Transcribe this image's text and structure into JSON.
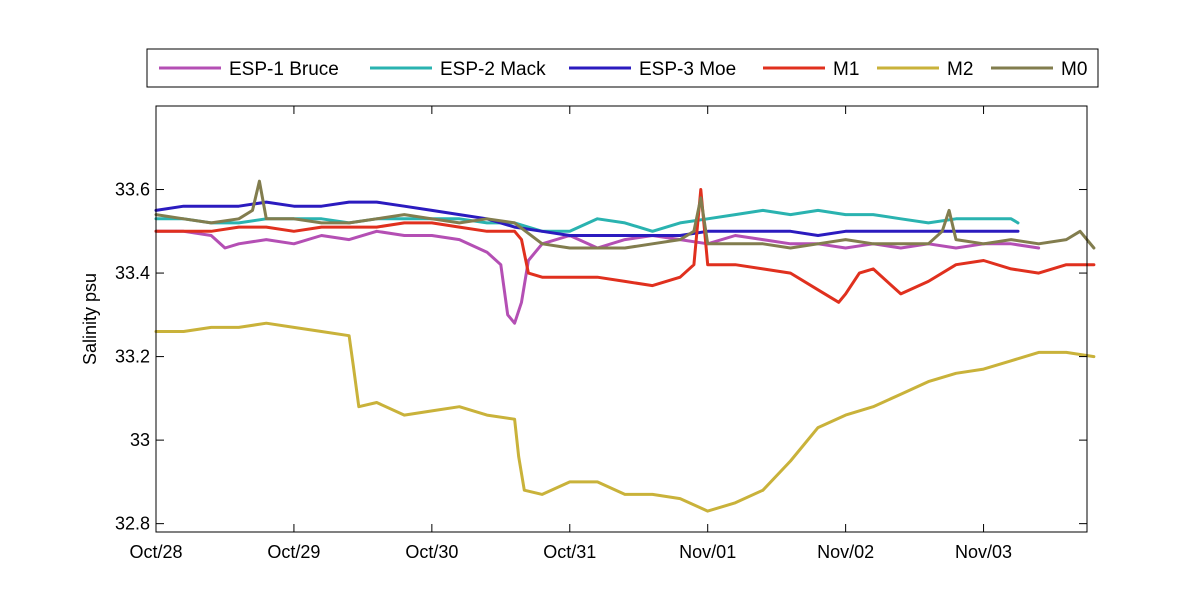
{
  "chart_data": {
    "type": "line",
    "title": "",
    "xlabel": "",
    "ylabel": "Salinity psu",
    "x_ticks": [
      "Oct/28",
      "Oct/29",
      "Oct/30",
      "Oct/31",
      "Nov/01",
      "Nov/02",
      "Nov/03"
    ],
    "y_ticks": [
      "32.8",
      "33",
      "33.2",
      "33.4",
      "33.6"
    ],
    "xlim": [
      "Oct/28",
      "Nov/03 18:00"
    ],
    "ylim": [
      32.78,
      33.8
    ],
    "grid": false,
    "legend_position": "top",
    "x_units": "days since Oct/28 00:00",
    "series": [
      {
        "name": "ESP-1 Bruce",
        "color": "#b44fb4",
        "x": [
          0.0,
          0.2,
          0.4,
          0.5,
          0.6,
          0.8,
          1.0,
          1.2,
          1.4,
          1.6,
          1.8,
          2.0,
          2.2,
          2.4,
          2.5,
          2.55,
          2.6,
          2.65,
          2.7,
          2.8,
          3.0,
          3.2,
          3.4,
          3.6,
          3.8,
          4.0,
          4.2,
          4.4,
          4.6,
          4.8,
          5.0,
          5.2,
          5.4,
          5.6,
          5.8,
          6.0,
          6.2,
          6.4
        ],
        "y": [
          33.5,
          33.5,
          33.49,
          33.46,
          33.47,
          33.48,
          33.47,
          33.49,
          33.48,
          33.5,
          33.49,
          33.49,
          33.48,
          33.45,
          33.42,
          33.3,
          33.28,
          33.33,
          33.43,
          33.47,
          33.49,
          33.46,
          33.48,
          33.49,
          33.48,
          33.47,
          33.49,
          33.48,
          33.47,
          33.47,
          33.46,
          33.47,
          33.46,
          33.47,
          33.46,
          33.47,
          33.47,
          33.46
        ]
      },
      {
        "name": "ESP-2 Mack",
        "color": "#2ab3b0",
        "x": [
          0.0,
          0.2,
          0.4,
          0.6,
          0.8,
          1.0,
          1.2,
          1.4,
          1.6,
          1.8,
          2.0,
          2.2,
          2.4,
          2.6,
          2.8,
          3.0,
          3.2,
          3.4,
          3.6,
          3.8,
          4.0,
          4.2,
          4.4,
          4.6,
          4.8,
          5.0,
          5.2,
          5.4,
          5.6,
          5.8,
          6.0,
          6.2,
          6.25
        ],
        "y": [
          33.53,
          33.53,
          33.52,
          33.52,
          33.53,
          33.53,
          33.53,
          33.52,
          33.53,
          33.53,
          33.53,
          33.53,
          33.52,
          33.52,
          33.5,
          33.5,
          33.53,
          33.52,
          33.5,
          33.52,
          33.53,
          33.54,
          33.55,
          33.54,
          33.55,
          33.54,
          33.54,
          33.53,
          33.52,
          33.53,
          33.53,
          33.53,
          33.52
        ]
      },
      {
        "name": "ESP-3 Moe",
        "color": "#2b1bbf",
        "x": [
          0.0,
          0.2,
          0.4,
          0.6,
          0.8,
          1.0,
          1.2,
          1.4,
          1.6,
          1.8,
          2.0,
          2.2,
          2.4,
          2.6,
          2.8,
          3.0,
          3.2,
          3.4,
          3.6,
          3.8,
          4.0,
          4.2,
          4.4,
          4.6,
          4.8,
          5.0,
          5.2,
          5.4,
          5.6,
          5.8,
          6.0,
          6.2,
          6.25
        ],
        "y": [
          33.55,
          33.56,
          33.56,
          33.56,
          33.57,
          33.56,
          33.56,
          33.57,
          33.57,
          33.56,
          33.55,
          33.54,
          33.53,
          33.51,
          33.5,
          33.49,
          33.49,
          33.49,
          33.49,
          33.49,
          33.5,
          33.5,
          33.5,
          33.5,
          33.49,
          33.5,
          33.5,
          33.5,
          33.5,
          33.5,
          33.5,
          33.5,
          33.5
        ]
      },
      {
        "name": "M1",
        "color": "#e0301e",
        "x": [
          0.0,
          0.2,
          0.4,
          0.6,
          0.8,
          1.0,
          1.2,
          1.4,
          1.6,
          1.8,
          2.0,
          2.2,
          2.4,
          2.6,
          2.65,
          2.7,
          2.8,
          3.0,
          3.2,
          3.4,
          3.6,
          3.8,
          3.9,
          3.95,
          4.0,
          4.2,
          4.4,
          4.6,
          4.8,
          4.95,
          5.0,
          5.1,
          5.2,
          5.4,
          5.6,
          5.8,
          6.0,
          6.2,
          6.4,
          6.6,
          6.8
        ],
        "y": [
          33.5,
          33.5,
          33.5,
          33.51,
          33.51,
          33.5,
          33.51,
          33.51,
          33.51,
          33.52,
          33.52,
          33.51,
          33.5,
          33.5,
          33.48,
          33.4,
          33.39,
          33.39,
          33.39,
          33.38,
          33.37,
          33.39,
          33.42,
          33.6,
          33.42,
          33.42,
          33.41,
          33.4,
          33.36,
          33.33,
          33.35,
          33.4,
          33.41,
          33.35,
          33.38,
          33.42,
          33.43,
          33.41,
          33.4,
          33.42,
          33.42
        ]
      },
      {
        "name": "M2",
        "color": "#c9b23a",
        "x": [
          0.0,
          0.2,
          0.4,
          0.6,
          0.8,
          1.0,
          1.2,
          1.4,
          1.43,
          1.47,
          1.6,
          1.8,
          2.0,
          2.2,
          2.4,
          2.6,
          2.63,
          2.67,
          2.8,
          3.0,
          3.2,
          3.4,
          3.6,
          3.8,
          4.0,
          4.2,
          4.4,
          4.6,
          4.8,
          5.0,
          5.2,
          5.4,
          5.6,
          5.8,
          6.0,
          6.2,
          6.4,
          6.6,
          6.8
        ],
        "y": [
          33.26,
          33.26,
          33.27,
          33.27,
          33.28,
          33.27,
          33.26,
          33.25,
          33.18,
          33.08,
          33.09,
          33.06,
          33.07,
          33.08,
          33.06,
          33.05,
          32.96,
          32.88,
          32.87,
          32.9,
          32.9,
          32.87,
          32.87,
          32.86,
          32.83,
          32.85,
          32.88,
          32.95,
          33.03,
          33.06,
          33.08,
          33.11,
          33.14,
          33.16,
          33.17,
          33.19,
          33.21,
          33.21,
          33.2
        ]
      },
      {
        "name": "M0",
        "color": "#827d4e",
        "x": [
          0.0,
          0.2,
          0.4,
          0.6,
          0.7,
          0.75,
          0.8,
          1.0,
          1.2,
          1.4,
          1.6,
          1.8,
          2.0,
          2.2,
          2.4,
          2.6,
          2.8,
          3.0,
          3.2,
          3.4,
          3.6,
          3.8,
          3.9,
          3.95,
          4.0,
          4.2,
          4.4,
          4.6,
          4.8,
          5.0,
          5.2,
          5.4,
          5.6,
          5.7,
          5.75,
          5.8,
          6.0,
          6.2,
          6.4,
          6.6,
          6.7,
          6.8
        ],
        "y": [
          33.54,
          33.53,
          33.52,
          33.53,
          33.55,
          33.62,
          33.53,
          33.53,
          33.52,
          33.52,
          33.53,
          33.54,
          33.53,
          33.52,
          33.53,
          33.52,
          33.47,
          33.46,
          33.46,
          33.46,
          33.47,
          33.48,
          33.5,
          33.58,
          33.47,
          33.47,
          33.47,
          33.46,
          33.47,
          33.48,
          33.47,
          33.47,
          33.47,
          33.5,
          33.55,
          33.48,
          33.47,
          33.48,
          33.47,
          33.48,
          33.5,
          33.46
        ]
      }
    ]
  }
}
